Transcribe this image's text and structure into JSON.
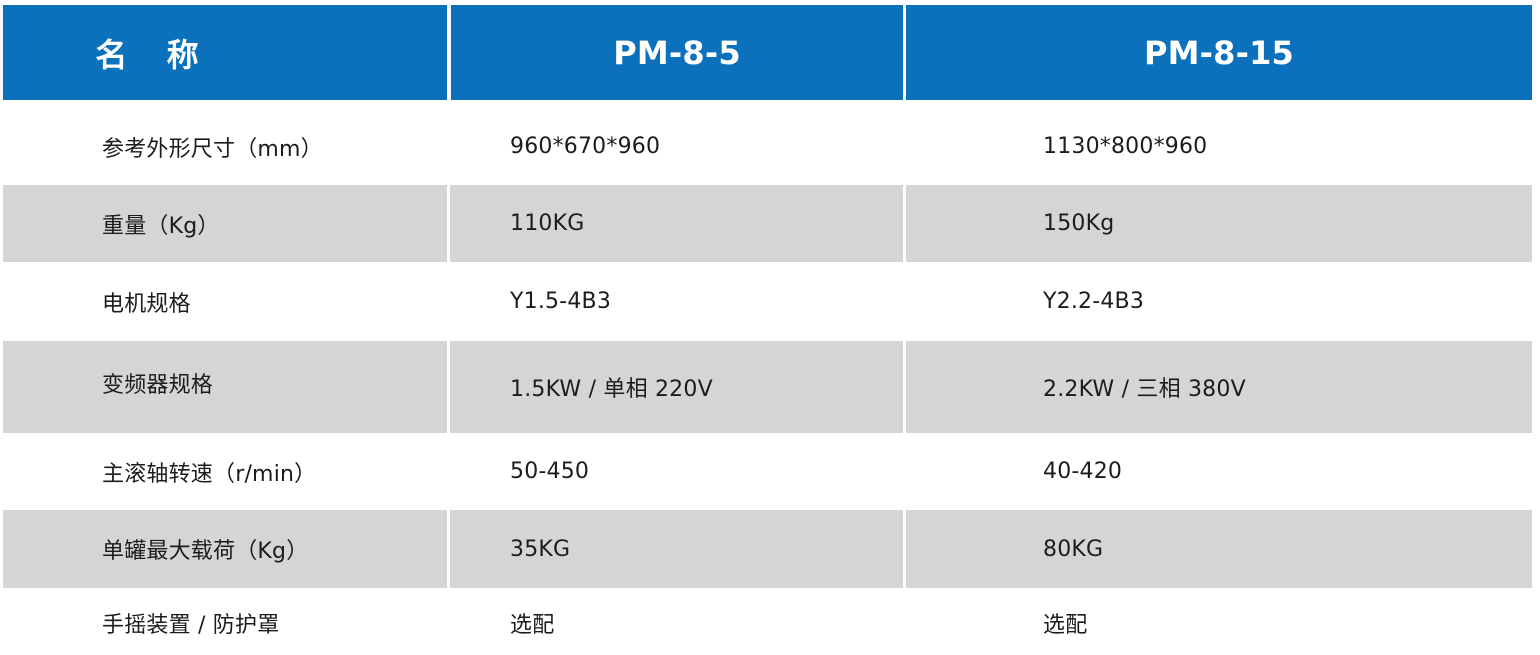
{
  "table": {
    "headers": [
      "名 称",
      "PM-8-5",
      "PM-8-15"
    ],
    "rows": [
      {
        "name": "参考外形尺寸（mm）",
        "pm8_5": "960*670*960",
        "pm8_15": "1130*800*960"
      },
      {
        "name": "重量（Kg）",
        "pm8_5": "110KG",
        "pm8_15": "150Kg"
      },
      {
        "name": "电机规格",
        "pm8_5": "Y1.5-4B3",
        "pm8_15": "Y2.2-4B3"
      },
      {
        "name": "变频器规格",
        "pm8_5": "1.5KW / 单相 220V",
        "pm8_15": "2.2KW / 三相 380V"
      },
      {
        "name": "主滚轴转速（r/min）",
        "pm8_5": "50-450",
        "pm8_15": "40-420"
      },
      {
        "name": "单罐最大载荷（Kg）",
        "pm8_5": "35KG",
        "pm8_15": "80KG"
      },
      {
        "name": "手摇装置 / 防护罩",
        "pm8_5": "选配",
        "pm8_15": "选配"
      }
    ]
  },
  "colors": {
    "header_bg": "#0c71bd",
    "header_text": "#ffffff",
    "shaded_row_bg": "#d4d5d7",
    "body_text": "#1c1c1c"
  }
}
